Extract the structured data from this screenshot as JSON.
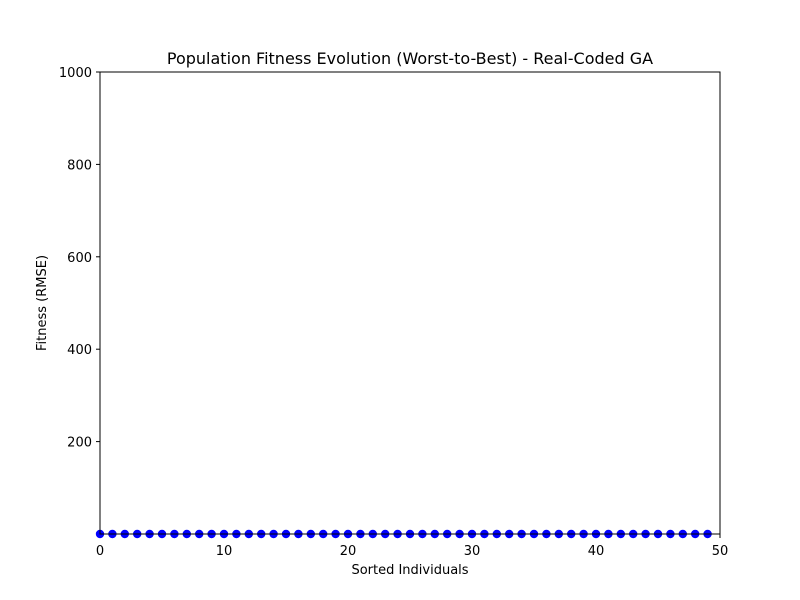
{
  "chart_data": {
    "type": "scatter",
    "title": "Population Fitness Evolution (Worst-to-Best) - Real-Coded GA",
    "xlabel": "Sorted Individuals",
    "ylabel": "Fitness (RMSE)",
    "xlim": [
      0,
      50
    ],
    "ylim": [
      0,
      1000
    ],
    "x_ticks": [
      0,
      10,
      20,
      30,
      40,
      50
    ],
    "y_ticks": [
      200,
      400,
      600,
      800,
      1000
    ],
    "grid": false,
    "marker_color": "#0000ff",
    "series": [
      {
        "x": [
          0,
          1,
          2,
          3,
          4,
          5,
          6,
          7,
          8,
          9,
          10,
          11,
          12,
          13,
          14,
          15,
          16,
          17,
          18,
          19,
          20,
          21,
          22,
          23,
          24,
          25,
          26,
          27,
          28,
          29,
          30,
          31,
          32,
          33,
          34,
          35,
          36,
          37,
          38,
          39,
          40,
          41,
          42,
          43,
          44,
          45,
          46,
          47,
          48,
          49
        ],
        "values": [
          0,
          0,
          0,
          0,
          0,
          0,
          0,
          0,
          0,
          0,
          0,
          0,
          0,
          0,
          0,
          0,
          0,
          0,
          0,
          0,
          0,
          0,
          0,
          0,
          0,
          0,
          0,
          0,
          0,
          0,
          0,
          0,
          0,
          0,
          0,
          0,
          0,
          0,
          0,
          0,
          0,
          0,
          0,
          0,
          0,
          0,
          0,
          0,
          0,
          0
        ]
      }
    ]
  }
}
